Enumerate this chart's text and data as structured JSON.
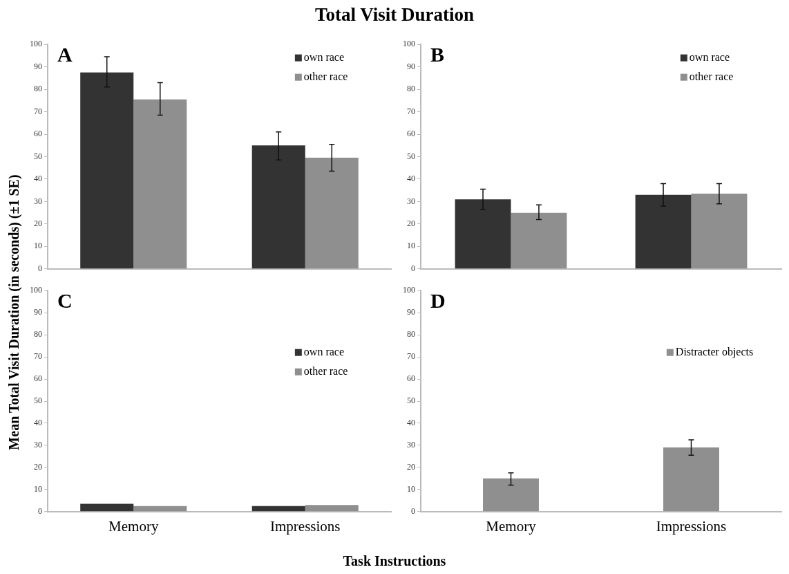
{
  "chart_data": [
    {
      "type": "bar",
      "title": "Total Visit Duration",
      "ylabel": "Mean Total Visit Duration (in seconds) (±1 SE)",
      "annotations": [
        "A"
      ],
      "categories": [
        null,
        null
      ],
      "tick_labels": "y",
      "legend": "top right",
      "grid": false,
      "ylim": [
        0,
        100
      ],
      "yticks": [
        0,
        10,
        20,
        30,
        40,
        50,
        60,
        70,
        80,
        90,
        100
      ],
      "series": [
        {
          "name": "own race",
          "color": "#333333",
          "values": [
            87.5,
            55
          ],
          "errors": [
            [
              81,
              94.5
            ],
            [
              48.5,
              61
            ]
          ]
        },
        {
          "name": "other race",
          "color": "#8f8f8f",
          "values": [
            75.5,
            49.5
          ],
          "errors": [
            [
              68.5,
              83
            ],
            [
              43.5,
              55.5
            ]
          ]
        }
      ]
    },
    {
      "type": "bar",
      "annotations": [
        "B"
      ],
      "categories": [
        null,
        null
      ],
      "tick_labels": "y",
      "legend": "top right",
      "grid": false,
      "ylim": [
        0,
        100
      ],
      "yticks": [
        0,
        10,
        20,
        30,
        40,
        50,
        60,
        70,
        80,
        90,
        100
      ],
      "series": [
        {
          "name": "own race",
          "color": "#333333",
          "values": [
            31,
            33
          ],
          "errors": [
            [
              26.5,
              35.5
            ],
            [
              28,
              38
            ]
          ]
        },
        {
          "name": "other race",
          "color": "#8f8f8f",
          "values": [
            25,
            33.5
          ],
          "errors": [
            [
              22,
              28.5
            ],
            [
              29,
              38
            ]
          ]
        }
      ]
    },
    {
      "type": "bar",
      "xlabel": "Task Instructions",
      "annotations": [
        "C"
      ],
      "categories": [
        "Memory",
        "Impressions"
      ],
      "legend": "right",
      "grid": false,
      "ylim": [
        0,
        100
      ],
      "yticks": [
        0,
        10,
        20,
        30,
        40,
        50,
        60,
        70,
        80,
        90,
        100
      ],
      "series": [
        {
          "name": "own race",
          "color": "#333333",
          "values": [
            3.5,
            2.5
          ]
        },
        {
          "name": "other race",
          "color": "#8f8f8f",
          "values": [
            2.5,
            3
          ]
        }
      ]
    },
    {
      "type": "bar",
      "annotations": [
        "D"
      ],
      "categories": [
        "Memory",
        "Impressions"
      ],
      "legend": "right",
      "grid": false,
      "ylim": [
        0,
        100
      ],
      "yticks": [
        0,
        10,
        20,
        30,
        40,
        50,
        60,
        70,
        80,
        90,
        100
      ],
      "series": [
        {
          "name": "Distracter objects",
          "color": "#8f8f8f",
          "values": [
            15,
            29
          ],
          "errors": [
            [
              12,
              17.5
            ],
            [
              25.5,
              32.5
            ]
          ]
        }
      ]
    }
  ]
}
